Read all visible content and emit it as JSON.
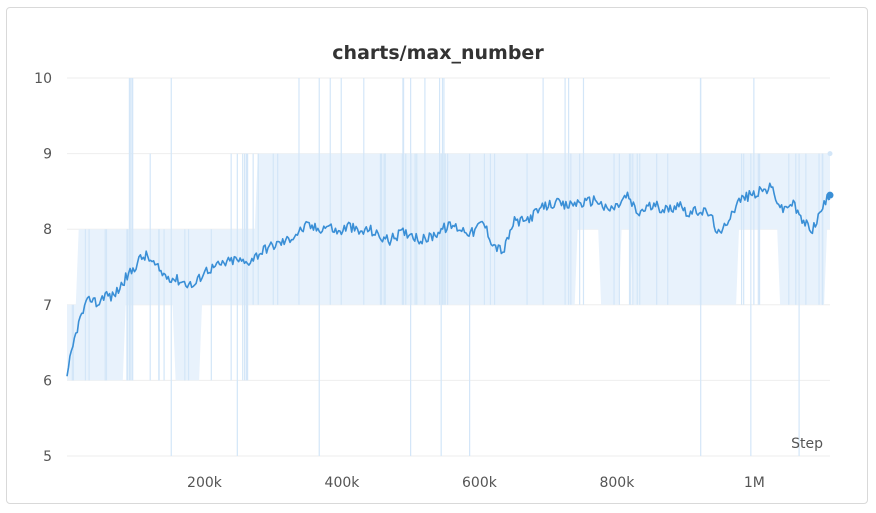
{
  "colors": {
    "main_line": "#3a8fd6",
    "raw_line": "#d3e6f8",
    "band_fill": "#e8f2fc",
    "grid": "#eeeeee"
  },
  "chart_data": {
    "type": "line",
    "title": "charts/max_number",
    "xlabel": "Step",
    "ylabel": "",
    "xlim": [
      0,
      1110000
    ],
    "ylim": [
      5,
      10
    ],
    "x_ticks": [
      200000,
      400000,
      600000,
      800000,
      1000000
    ],
    "x_tick_labels": [
      "200k",
      "400k",
      "600k",
      "800k",
      "1M"
    ],
    "y_ticks": [
      5,
      6,
      7,
      8,
      9,
      10
    ],
    "y_tick_labels": [
      "5",
      "6",
      "7",
      "8",
      "9",
      "10"
    ],
    "grid": true,
    "legend": "none",
    "series": [
      {
        "role": "smoothed",
        "x": [
          0,
          5000,
          10000,
          15000,
          25000,
          35000,
          45000,
          55000,
          65000,
          75000,
          85000,
          95000,
          105000,
          115000,
          125000,
          140000,
          155000,
          170000,
          185000,
          200000,
          215000,
          230000,
          245000,
          260000,
          275000,
          290000,
          305000,
          320000,
          335000,
          350000,
          365000,
          380000,
          395000,
          410000,
          425000,
          440000,
          455000,
          470000,
          485000,
          500000,
          515000,
          530000,
          545000,
          560000,
          575000,
          590000,
          605000,
          620000,
          635000,
          650000,
          665000,
          680000,
          695000,
          710000,
          725000,
          740000,
          755000,
          770000,
          785000,
          800000,
          815000,
          830000,
          845000,
          860000,
          875000,
          890000,
          905000,
          920000,
          935000,
          950000,
          965000,
          980000,
          995000,
          1010000,
          1025000,
          1040000,
          1055000,
          1070000,
          1085000,
          1100000,
          1110000
        ],
        "values": [
          6.0,
          6.3,
          6.5,
          6.7,
          6.95,
          7.1,
          7.0,
          7.15,
          7.1,
          7.2,
          7.35,
          7.45,
          7.6,
          7.65,
          7.55,
          7.4,
          7.35,
          7.3,
          7.25,
          7.45,
          7.5,
          7.55,
          7.6,
          7.55,
          7.65,
          7.75,
          7.8,
          7.85,
          7.95,
          8.05,
          8.0,
          8.05,
          7.95,
          8.05,
          7.95,
          8.0,
          7.9,
          7.85,
          7.95,
          7.95,
          7.85,
          7.9,
          8.0,
          8.05,
          8.0,
          7.95,
          8.1,
          7.8,
          7.7,
          8.1,
          8.1,
          8.2,
          8.3,
          8.35,
          8.3,
          8.35,
          8.35,
          8.4,
          8.25,
          8.3,
          8.45,
          8.2,
          8.3,
          8.3,
          8.25,
          8.35,
          8.2,
          8.25,
          8.2,
          7.9,
          8.2,
          8.4,
          8.45,
          8.5,
          8.55,
          8.25,
          8.35,
          8.1,
          8.0,
          8.3,
          8.45
        ]
      }
    ]
  }
}
